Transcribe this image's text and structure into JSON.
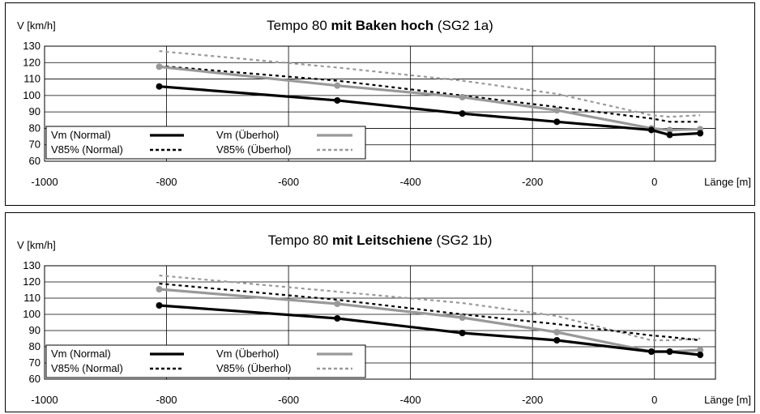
{
  "chart_data": [
    {
      "type": "line",
      "title": "Tempo 80",
      "title_bold": "mit Baken hoch",
      "title_suffix": "(SG2 1a)",
      "ylabel": "V [km/h]",
      "xlabel": "Länge [m]",
      "xlim": [
        -1000,
        100
      ],
      "ylim": [
        60,
        130
      ],
      "xticks": [
        -1000,
        -800,
        -600,
        -400,
        -200,
        0
      ],
      "yticks": [
        60,
        70,
        80,
        90,
        100,
        110,
        120,
        130
      ],
      "grid": true,
      "legend_position": "bottom-left",
      "series": [
        {
          "name": "Vm (Normal)",
          "color": "#000000",
          "style": "solid",
          "x": [
            -812,
            -520,
            -315,
            -160,
            -5,
            25,
            75
          ],
          "y": [
            105.5,
            97,
            89,
            84,
            79,
            76,
            77
          ]
        },
        {
          "name": "Vm (Überhol)",
          "color": "#999999",
          "style": "solid",
          "x": [
            -812,
            -520,
            -315,
            -160,
            -5,
            25,
            75
          ],
          "y": [
            117.5,
            106,
            99,
            91,
            80,
            79,
            79.5
          ]
        },
        {
          "name": "V85% (Normal)",
          "color": "#000000",
          "style": "dashed",
          "x": [
            -812,
            -520,
            -315,
            -160,
            -5,
            25,
            75
          ],
          "y": [
            118,
            109,
            100,
            93,
            86,
            84,
            84
          ]
        },
        {
          "name": "V85% (Überhol)",
          "color": "#999999",
          "style": "dashed",
          "x": [
            -812,
            -520,
            -315,
            -160,
            -5,
            25,
            75
          ],
          "y": [
            127,
            117,
            109,
            101,
            88,
            87,
            88
          ]
        }
      ]
    },
    {
      "type": "line",
      "title": "Tempo 80",
      "title_bold": "mit Leitschiene",
      "title_suffix": "(SG2 1b)",
      "ylabel": "V [km/h]",
      "xlabel": "Länge [m]",
      "xlim": [
        -1000,
        100
      ],
      "ylim": [
        60,
        130
      ],
      "xticks": [
        -1000,
        -800,
        -600,
        -400,
        -200,
        0
      ],
      "yticks": [
        60,
        70,
        80,
        90,
        100,
        110,
        120,
        130
      ],
      "grid": true,
      "legend_position": "bottom-left",
      "series": [
        {
          "name": "Vm (Normal)",
          "color": "#000000",
          "style": "solid",
          "x": [
            -812,
            -520,
            -315,
            -160,
            -5,
            25,
            75
          ],
          "y": [
            105.5,
            97.5,
            88.5,
            84,
            77,
            77,
            75
          ]
        },
        {
          "name": "Vm (Überhol)",
          "color": "#999999",
          "style": "solid",
          "x": [
            -812,
            -520,
            -315,
            -160,
            -5,
            25,
            75
          ],
          "y": [
            115.5,
            106.5,
            98,
            89,
            77,
            77,
            78
          ]
        },
        {
          "name": "V85% (Normal)",
          "color": "#000000",
          "style": "dashed",
          "x": [
            -812,
            -520,
            -315,
            -160,
            -5,
            25,
            75
          ],
          "y": [
            119,
            109,
            100,
            94,
            87,
            86,
            84
          ]
        },
        {
          "name": "V85% (Überhol)",
          "color": "#999999",
          "style": "dashed",
          "x": [
            -812,
            -520,
            -315,
            -160,
            -5,
            25,
            75
          ],
          "y": [
            124,
            114,
            107,
            99,
            84,
            84,
            85
          ]
        }
      ]
    }
  ]
}
